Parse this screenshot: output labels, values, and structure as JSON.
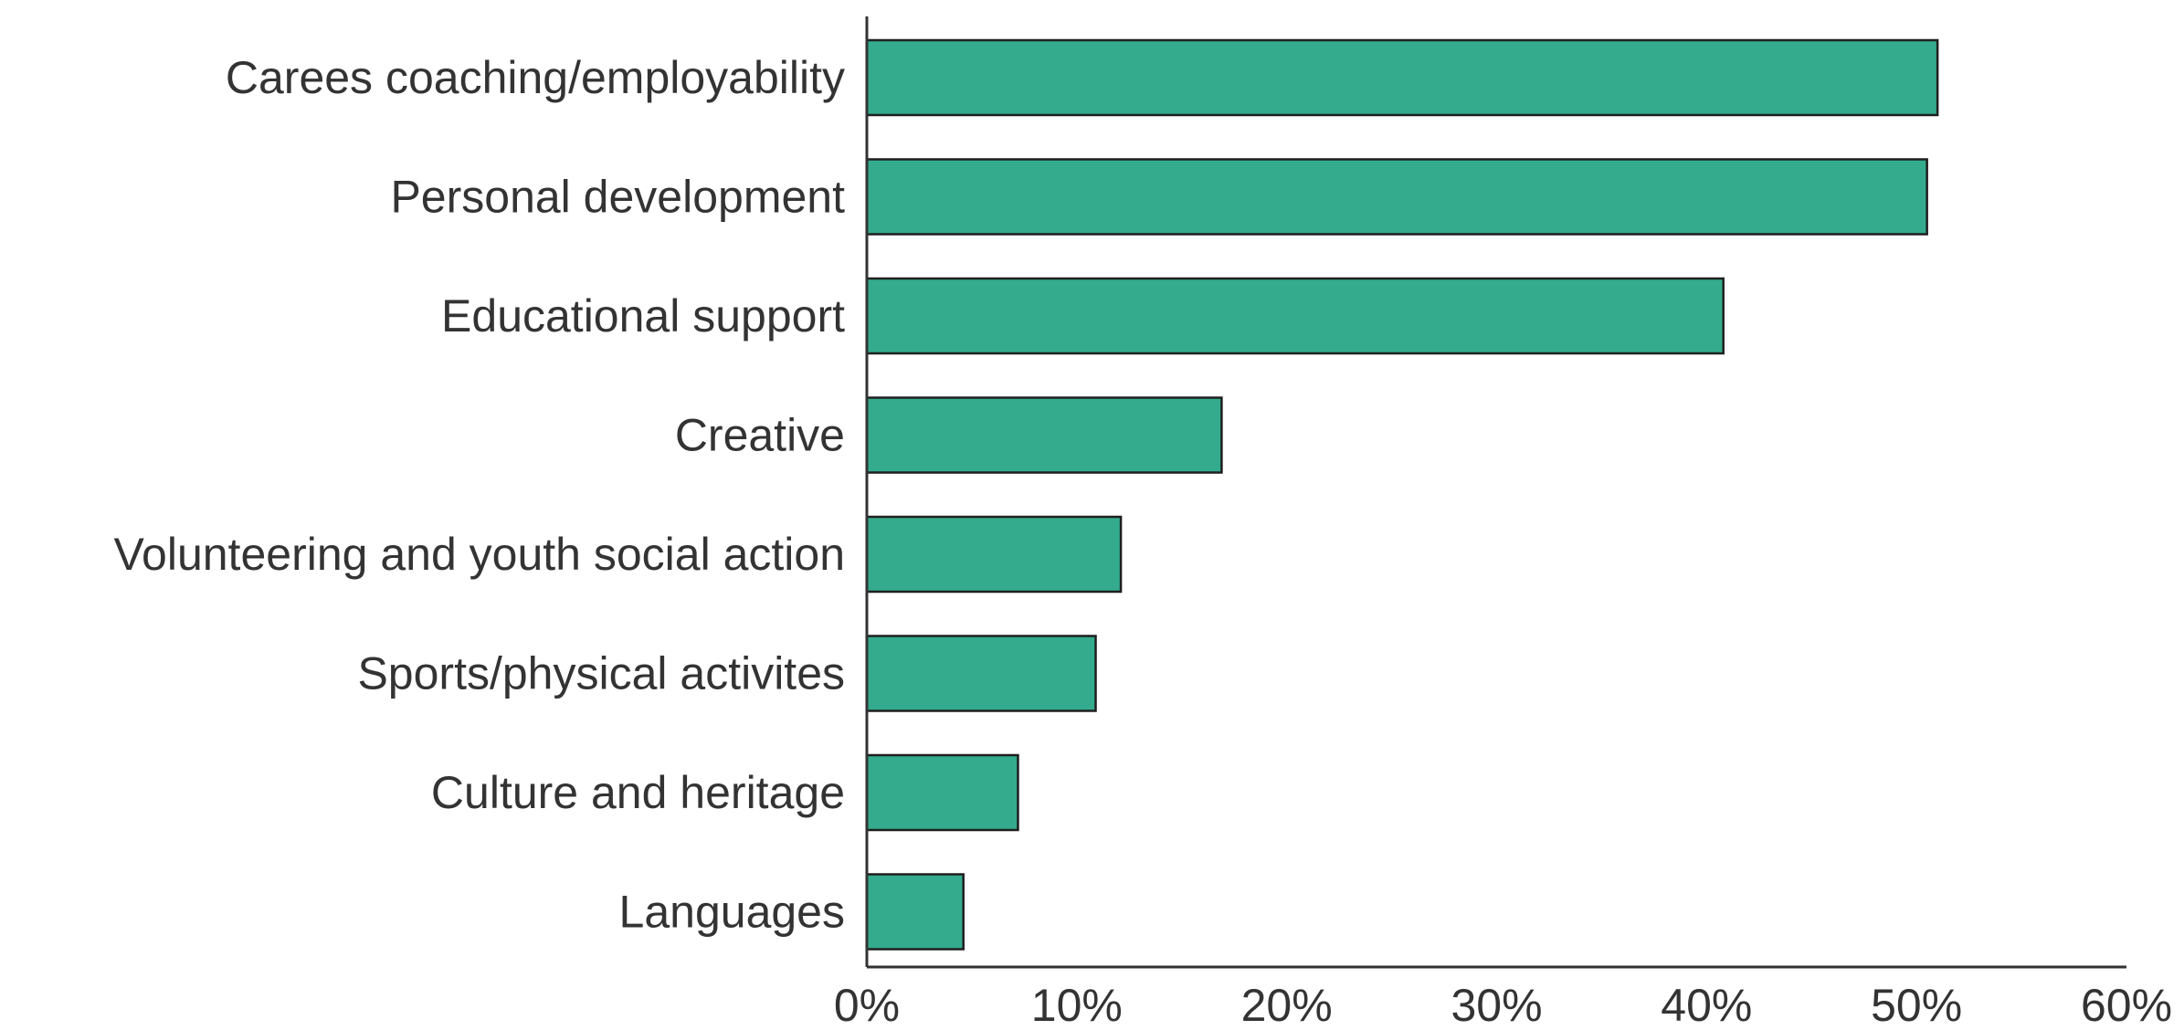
{
  "chart_data": {
    "type": "bar",
    "orientation": "horizontal",
    "categories": [
      "Carees coaching/employability",
      "Personal development",
      "Educational support",
      "Creative",
      "Volunteering and youth social action",
      "Sports/physical activites",
      "Culture and heritage",
      "Languages"
    ],
    "values": [
      51,
      50.5,
      40.8,
      16.9,
      12.1,
      10.9,
      7.2,
      4.6
    ],
    "value_unit": "%",
    "xlim": [
      0,
      60
    ],
    "x_ticks": [
      "0%",
      "10%",
      "20%",
      "30%",
      "40%",
      "50%",
      "60%"
    ],
    "title": "",
    "xlabel": "",
    "ylabel": "",
    "grid": false,
    "legend": "none",
    "bar_color": "#33ab8c"
  }
}
